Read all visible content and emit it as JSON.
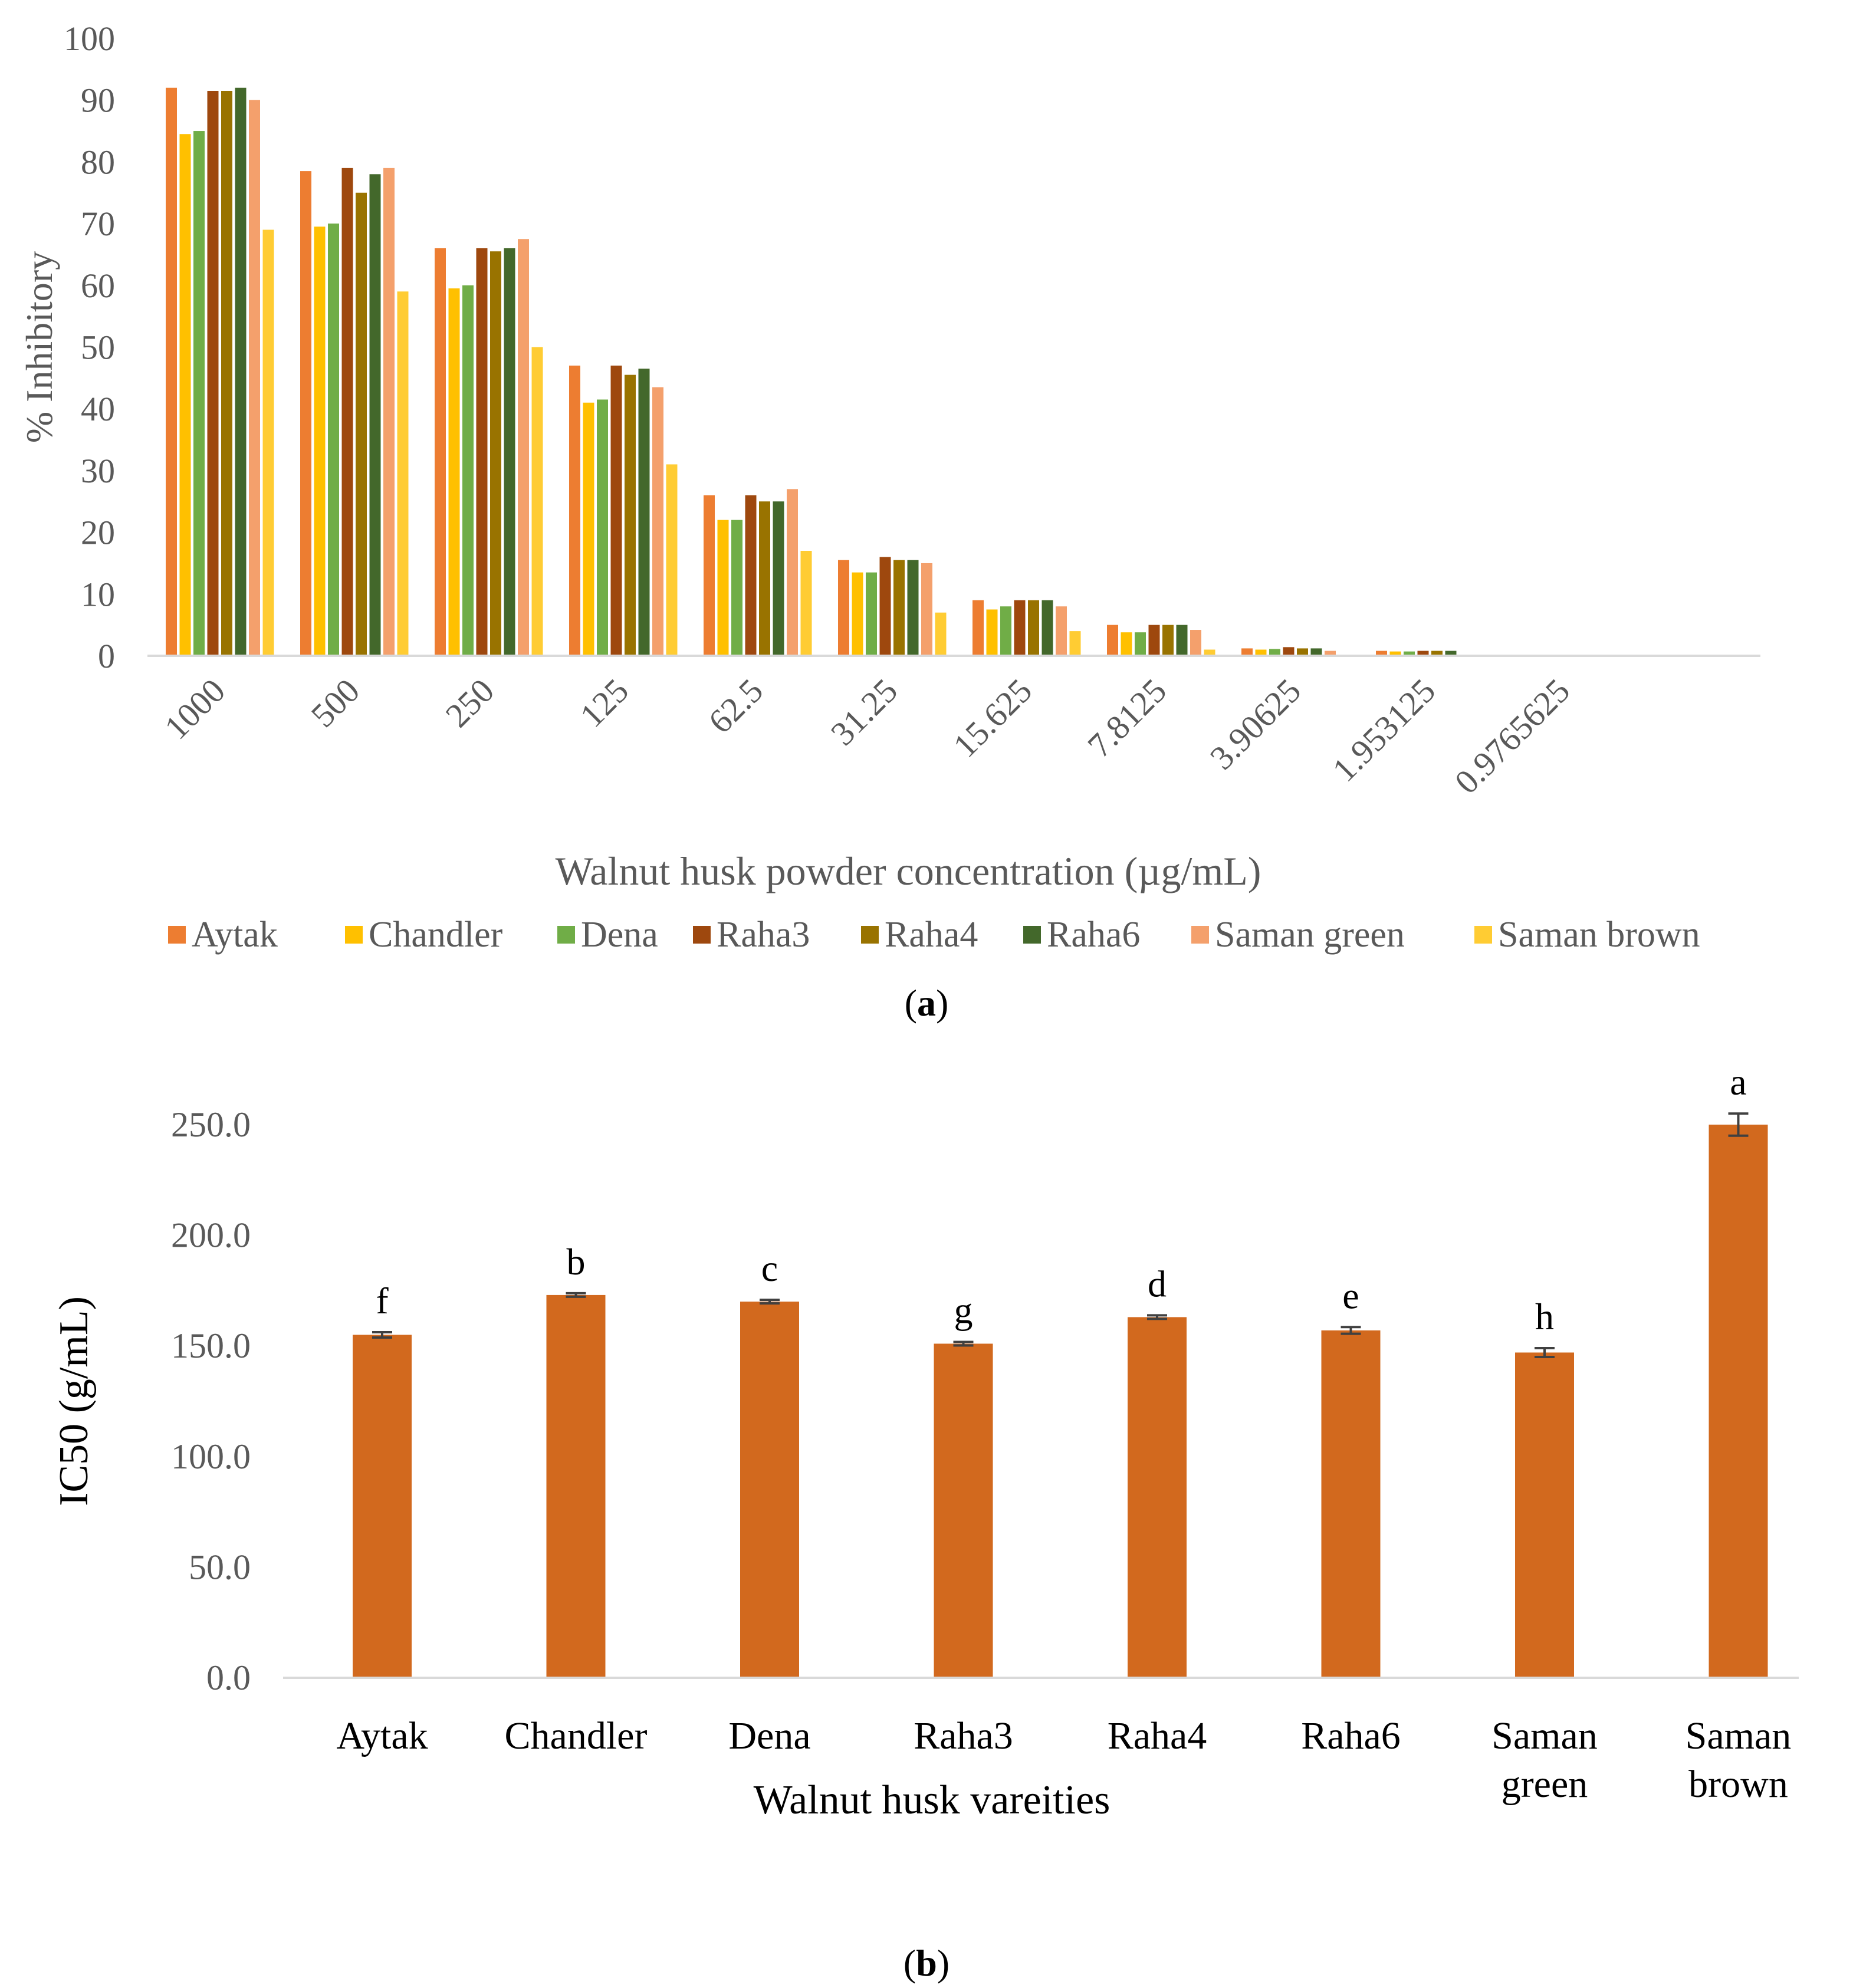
{
  "chart_data": [
    {
      "panel": "a",
      "type": "bar",
      "xlabel": "Walnut husk powder concentration (µg/mL)",
      "ylabel": "% Inhibitory",
      "ylim": [
        0,
        100
      ],
      "yticks": [
        "0",
        "10",
        "20",
        "30",
        "40",
        "50",
        "60",
        "70",
        "80",
        "90",
        "100"
      ],
      "categories": [
        "1000",
        "500",
        "250",
        "125",
        "62.5",
        "31.25",
        "15.625",
        "7.8125",
        "3.90625",
        "1.953125",
        "0.9765625"
      ],
      "legend_position": "bottom",
      "series": [
        {
          "name": "Aytak",
          "color": "#ED7D31",
          "values": [
            92,
            78.5,
            66,
            47,
            26,
            15.5,
            9,
            5,
            1.2,
            0.8,
            0
          ]
        },
        {
          "name": "Chandler",
          "color": "#FFC000",
          "values": [
            84.5,
            69.5,
            59.5,
            41,
            22,
            13.5,
            7.5,
            3.8,
            1,
            0.7,
            0
          ]
        },
        {
          "name": "Dena",
          "color": "#70AD47",
          "values": [
            85,
            70,
            60,
            41.5,
            22,
            13.5,
            8,
            3.8,
            1.1,
            0.7,
            0
          ]
        },
        {
          "name": "Raha3",
          "color": "#9E480E",
          "values": [
            91.5,
            79,
            66,
            47,
            26,
            16,
            9,
            5,
            1.4,
            0.8,
            0
          ]
        },
        {
          "name": "Raha4",
          "color": "#997300",
          "values": [
            91.5,
            75,
            65.5,
            45.5,
            25,
            15.5,
            9,
            5,
            1.2,
            0.8,
            0
          ]
        },
        {
          "name": "Raha6",
          "color": "#43682B",
          "values": [
            92,
            78,
            66,
            46.5,
            25,
            15.5,
            9,
            5,
            1.2,
            0.8,
            0
          ]
        },
        {
          "name": "Saman green",
          "color": "#F4A06C",
          "values": [
            90,
            79,
            67.5,
            43.5,
            27,
            15,
            8,
            4.2,
            0.8,
            0,
            0
          ]
        },
        {
          "name": "Saman brown",
          "color": "#FFCC33",
          "values": [
            69,
            59,
            50,
            31,
            17,
            7,
            4,
            1,
            0,
            0,
            0
          ]
        }
      ]
    },
    {
      "panel": "b",
      "type": "bar",
      "xlabel": "Walnut husk vareities",
      "ylabel": "IC50 (g/mL)",
      "ylim": [
        0,
        275
      ],
      "yticks": [
        "0.0",
        "50.0",
        "100.0",
        "150.0",
        "200.0",
        "250.0"
      ],
      "categories": [
        [
          "Aytak"
        ],
        [
          "Chandler"
        ],
        [
          "Dena"
        ],
        [
          "Raha3"
        ],
        [
          "Raha4"
        ],
        [
          "Raha6"
        ],
        [
          "Saman",
          "green"
        ],
        [
          "Saman",
          "brown"
        ]
      ],
      "bar_color": "#D2691E",
      "values": [
        155,
        173,
        170,
        151,
        163,
        157,
        147,
        250
      ],
      "errors": [
        1.2,
        0.8,
        0.8,
        0.8,
        0.8,
        1.5,
        2,
        5
      ],
      "letters": [
        "f",
        "b",
        "c",
        "g",
        "d",
        "e",
        "h",
        "a"
      ]
    }
  ],
  "captions": {
    "a": "a",
    "b": "b"
  }
}
